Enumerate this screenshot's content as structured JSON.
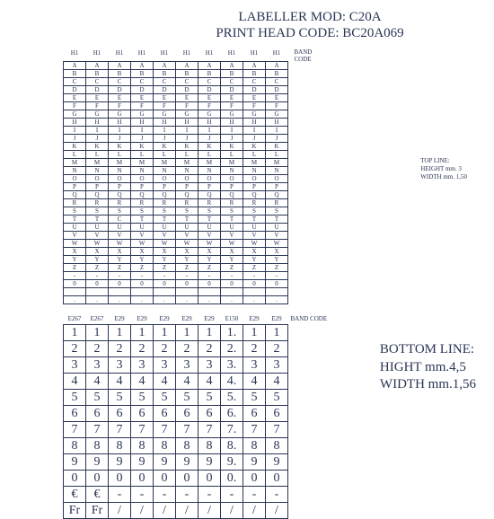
{
  "header": {
    "line1": "LABELLER MOD:  C20A",
    "line2": "PRINT HEAD CODE:  BC20A069"
  },
  "top_table": {
    "band_code_label": "BAND CODE",
    "column_headers": [
      "H1",
      "H1",
      "H1",
      "H1",
      "H1",
      "H1",
      "H1",
      "H1",
      "H1",
      "H1"
    ],
    "rows": [
      [
        "A",
        "A",
        "A",
        "A",
        "A",
        "A",
        "A",
        "A",
        "A",
        "A"
      ],
      [
        "B",
        "B",
        "B",
        "B",
        "B",
        "B",
        "B",
        "B",
        "B",
        "B"
      ],
      [
        "C",
        "C",
        "C",
        "C",
        "C",
        "C",
        "C",
        "C",
        "C",
        "C"
      ],
      [
        "D",
        "D",
        "D",
        "D",
        "D",
        "D",
        "D",
        "D",
        "D",
        "D"
      ],
      [
        "E",
        "E",
        "E",
        "E",
        "E",
        "E",
        "E",
        "E",
        "E",
        "E"
      ],
      [
        "F",
        "F",
        "F",
        "F",
        "F",
        "F",
        "F",
        "F",
        "F",
        "F"
      ],
      [
        "G",
        "G",
        "G",
        "G",
        "G",
        "G",
        "G",
        "G",
        "G",
        "G"
      ],
      [
        "H",
        "H",
        "H",
        "H",
        "H",
        "H",
        "H",
        "H",
        "H",
        "H"
      ],
      [
        "I",
        "I",
        "I",
        "I",
        "I",
        "I",
        "I",
        "I",
        "I",
        "I"
      ],
      [
        "J",
        "J",
        "J",
        "J",
        "J",
        "J",
        "J",
        "J",
        "J",
        "J"
      ],
      [
        "K",
        "K",
        "K",
        "K",
        "K",
        "K",
        "K",
        "K",
        "K",
        "K"
      ],
      [
        "L",
        "L",
        "L",
        "L",
        "L",
        "L",
        "L",
        "L",
        "L",
        "L"
      ],
      [
        "M",
        "M",
        "M",
        "M",
        "M",
        "M",
        "M",
        "M",
        "M",
        "M"
      ],
      [
        "N",
        "N",
        "N",
        "N",
        "N",
        "N",
        "N",
        "N",
        "N",
        "N"
      ],
      [
        "O",
        "O",
        "O",
        "O",
        "O",
        "O",
        "O",
        "O",
        "O",
        "O"
      ],
      [
        "P",
        "P",
        "P",
        "P",
        "P",
        "P",
        "P",
        "P",
        "P",
        "P"
      ],
      [
        "Q",
        "Q",
        "Q",
        "Q",
        "Q",
        "Q",
        "Q",
        "Q",
        "Q",
        "Q"
      ],
      [
        "R",
        "R",
        "R",
        "R",
        "R",
        "R",
        "R",
        "R",
        "R",
        "R"
      ],
      [
        "S",
        "S",
        "S",
        "S",
        "S",
        "S",
        "S",
        "S",
        "S",
        "S"
      ],
      [
        "T",
        "T",
        "C",
        "T",
        "T",
        "T",
        "T",
        "T",
        "T",
        "T"
      ],
      [
        "U",
        "U",
        "U",
        "U",
        "U",
        "U",
        "U",
        "U",
        "U",
        "U"
      ],
      [
        "V",
        "V",
        "V",
        "V",
        "V",
        "V",
        "V",
        "V",
        "V",
        "V"
      ],
      [
        "W",
        "W",
        "W",
        "W",
        "W",
        "W",
        "W",
        "W",
        "W",
        "W"
      ],
      [
        "X",
        "X",
        "X",
        "X",
        "X",
        "X",
        "X",
        "X",
        "X",
        "X"
      ],
      [
        "Y",
        "Y",
        "Y",
        "Y",
        "Y",
        "Y",
        "Y",
        "Y",
        "Y",
        "Y"
      ],
      [
        "Z",
        "Z",
        "Z",
        "Z",
        "Z",
        "Z",
        "Z",
        "Z",
        "Z",
        "Z"
      ],
      [
        "-",
        "-",
        "-",
        "-",
        "-",
        "-",
        "-",
        "-",
        "-",
        "-"
      ],
      [
        "0",
        "0",
        "0",
        "0",
        "0",
        "0",
        "0",
        "0",
        "0",
        "0"
      ],
      [
        "",
        "",
        "",
        "",
        "",
        "",
        "",
        "",
        "",
        ""
      ],
      [
        ".",
        ".",
        ".",
        ".",
        ".",
        ".",
        ".",
        ".",
        ".",
        "."
      ]
    ]
  },
  "top_note": {
    "line1": "TOP LINE:",
    "line2": "HEIGHT mm. 3",
    "line3": "WIDTH mm. 1,50"
  },
  "bottom_table": {
    "band_code_label": "BAND CODE",
    "column_headers": [
      "E267",
      "E267",
      "E29",
      "E29",
      "E29",
      "E29",
      "E29",
      "E150",
      "E29",
      "E29"
    ],
    "rows": [
      [
        "1",
        "1",
        "1",
        "1",
        "1",
        "1",
        "1",
        "1.",
        "1",
        "1"
      ],
      [
        "2",
        "2",
        "2",
        "2",
        "2",
        "2",
        "2",
        "2.",
        "2",
        "2"
      ],
      [
        "3",
        "3",
        "3",
        "3",
        "3",
        "3",
        "3",
        "3.",
        "3",
        "3"
      ],
      [
        "4",
        "4",
        "4",
        "4",
        "4",
        "4",
        "4",
        "4.",
        "4",
        "4"
      ],
      [
        "5",
        "5",
        "5",
        "5",
        "5",
        "5",
        "5",
        "5.",
        "5",
        "5"
      ],
      [
        "6",
        "6",
        "6",
        "6",
        "6",
        "6",
        "6",
        "6.",
        "6",
        "6"
      ],
      [
        "7",
        "7",
        "7",
        "7",
        "7",
        "7",
        "7",
        "7.",
        "7",
        "7"
      ],
      [
        "8",
        "8",
        "8",
        "8",
        "8",
        "8",
        "8",
        "8.",
        "8",
        "8"
      ],
      [
        "9",
        "9",
        "9",
        "9",
        "9",
        "9",
        "9",
        "9.",
        "9",
        "9"
      ],
      [
        "0",
        "0",
        "0",
        "0",
        "0",
        "0",
        "0",
        "0.",
        "0",
        "0"
      ],
      [
        "€",
        "€",
        "-",
        "-",
        "-",
        "-",
        "-",
        "-",
        "-",
        "-"
      ],
      [
        "Fr",
        "Fr",
        "/",
        "/",
        "/",
        "/",
        "/",
        "/",
        "/",
        "/"
      ]
    ]
  },
  "bottom_note": {
    "line1": "BOTTOM LINE:",
    "line2": "HIGHT  mm.4,5",
    "line3": "WIDTH mm.1,56"
  },
  "style": {
    "text_color": "#2a3555",
    "border_color": "#2a3555",
    "background": "#ffffff"
  }
}
